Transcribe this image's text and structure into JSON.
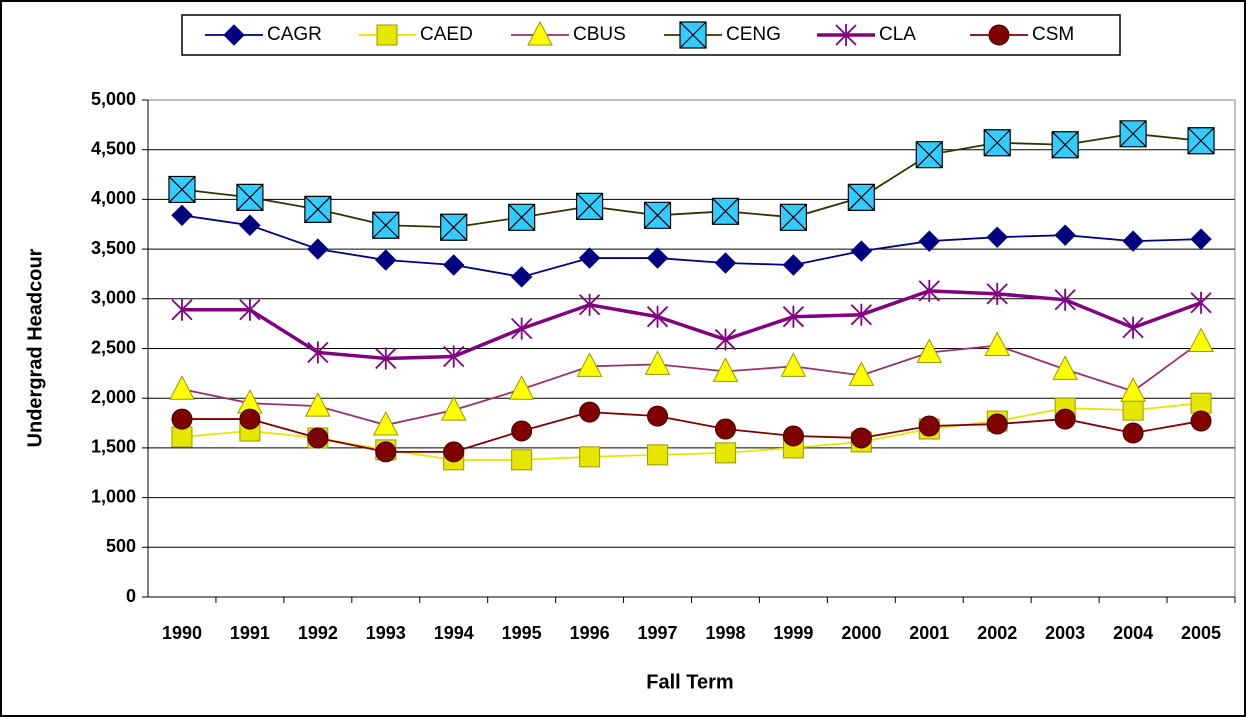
{
  "chart_data": {
    "type": "line",
    "x_label": "Fall Term",
    "y_label": "Undergrad Headcour",
    "categories": [
      "1990",
      "1991",
      "1992",
      "1993",
      "1994",
      "1995",
      "1996",
      "1997",
      "1998",
      "1999",
      "2000",
      "2001",
      "2002",
      "2003",
      "2004",
      "2005"
    ],
    "series": [
      {
        "name": "CAGR",
        "color": "#000080",
        "marker": "diamond",
        "marker_color": "#000080",
        "values": [
          3840,
          3740,
          3500,
          3390,
          3340,
          3220,
          3410,
          3410,
          3360,
          3340,
          3480,
          3580,
          3620,
          3640,
          3580,
          3600
        ]
      },
      {
        "name": "CAED",
        "color": "#e6e600",
        "marker": "square",
        "marker_color": "#e6e600",
        "values": [
          1610,
          1670,
          1600,
          1480,
          1380,
          1380,
          1410,
          1430,
          1450,
          1500,
          1560,
          1690,
          1770,
          1900,
          1880,
          1950
        ]
      },
      {
        "name": "CBUS",
        "color": "#993366",
        "marker": "triangle",
        "marker_color": "#ffff00",
        "values": [
          2090,
          1950,
          1920,
          1730,
          1880,
          2090,
          2320,
          2340,
          2270,
          2320,
          2230,
          2460,
          2530,
          2290,
          2070,
          2570
        ]
      },
      {
        "name": "CENG",
        "color": "#333300",
        "marker": "square-x",
        "marker_color": "#33ccff",
        "values": [
          4100,
          4020,
          3900,
          3740,
          3720,
          3820,
          3930,
          3840,
          3880,
          3820,
          4020,
          4450,
          4570,
          4550,
          4660,
          4590
        ]
      },
      {
        "name": "CLA",
        "color": "#800080",
        "marker": "asterisk",
        "marker_color": "#800080",
        "values": [
          2890,
          2890,
          2460,
          2400,
          2420,
          2700,
          2940,
          2820,
          2590,
          2820,
          2840,
          3080,
          3050,
          2990,
          2710,
          2960
        ]
      },
      {
        "name": "CSM",
        "color": "#800000",
        "marker": "circle",
        "marker_color": "#800000",
        "values": [
          1790,
          1790,
          1600,
          1460,
          1460,
          1670,
          1860,
          1820,
          1690,
          1620,
          1600,
          1720,
          1740,
          1790,
          1650,
          1770
        ]
      }
    ],
    "ylim": [
      0,
      5000
    ],
    "yticks": [
      0,
      500,
      {
        "value": 1000,
        "label": "1,000"
      },
      {
        "value": 1500,
        "label": "1,500"
      },
      {
        "value": 2000,
        "label": "2,000"
      },
      {
        "value": 2500,
        "label": "2,500"
      },
      {
        "value": 3000,
        "label": "3,000"
      },
      {
        "value": 3500,
        "label": "3,500"
      },
      {
        "value": 4000,
        "label": "4,000"
      },
      {
        "value": 4500,
        "label": "4,500"
      },
      {
        "value": 5000,
        "label": "5,000"
      }
    ],
    "grid": true,
    "legend": "top"
  }
}
